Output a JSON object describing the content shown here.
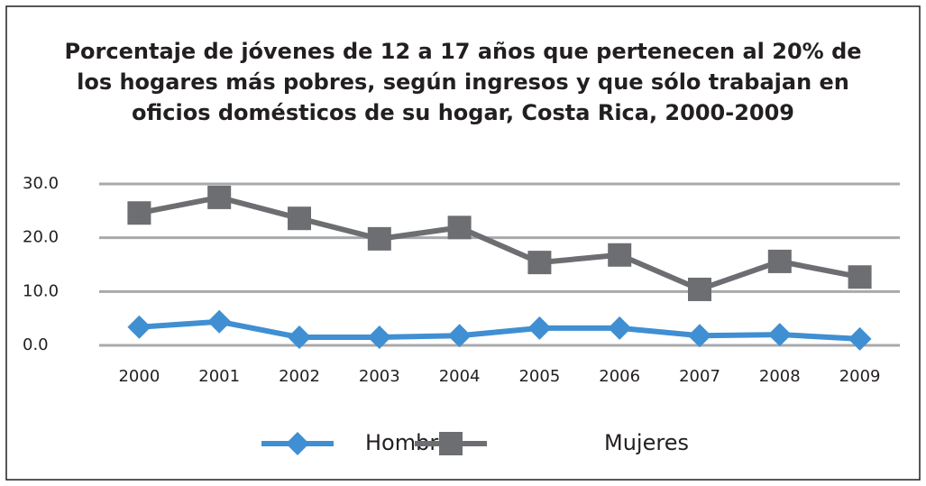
{
  "chart_data": {
    "type": "line",
    "title": "Porcentaje de jóvenes de 12 a 17 años que pertenecen al 20% de los hogares más pobres, según ingresos y que sólo trabajan en oficios domésticos de su hogar, Costa Rica, 2000-2009",
    "categories": [
      "2000",
      "2001",
      "2002",
      "2003",
      "2004",
      "2005",
      "2006",
      "2007",
      "2008",
      "2009"
    ],
    "series": [
      {
        "name": "Hombres",
        "color": "#3f8fd2",
        "marker": "diamond",
        "values": [
          3.4,
          4.4,
          1.5,
          1.5,
          1.8,
          3.2,
          3.2,
          1.8,
          2.0,
          1.2
        ]
      },
      {
        "name": "Mujeres",
        "color": "#6d6e71",
        "marker": "square",
        "values": [
          24.6,
          27.5,
          23.6,
          19.8,
          21.9,
          15.4,
          16.8,
          10.4,
          15.6,
          12.7
        ]
      }
    ],
    "ylim": [
      0,
      30
    ],
    "yticks": [
      {
        "value": 0,
        "label": "0.0"
      },
      {
        "value": 10,
        "label": "10.0"
      },
      {
        "value": 20,
        "label": "20.0"
      },
      {
        "value": 30,
        "label": "30.0"
      }
    ],
    "grid": true,
    "legend": "bottom"
  }
}
